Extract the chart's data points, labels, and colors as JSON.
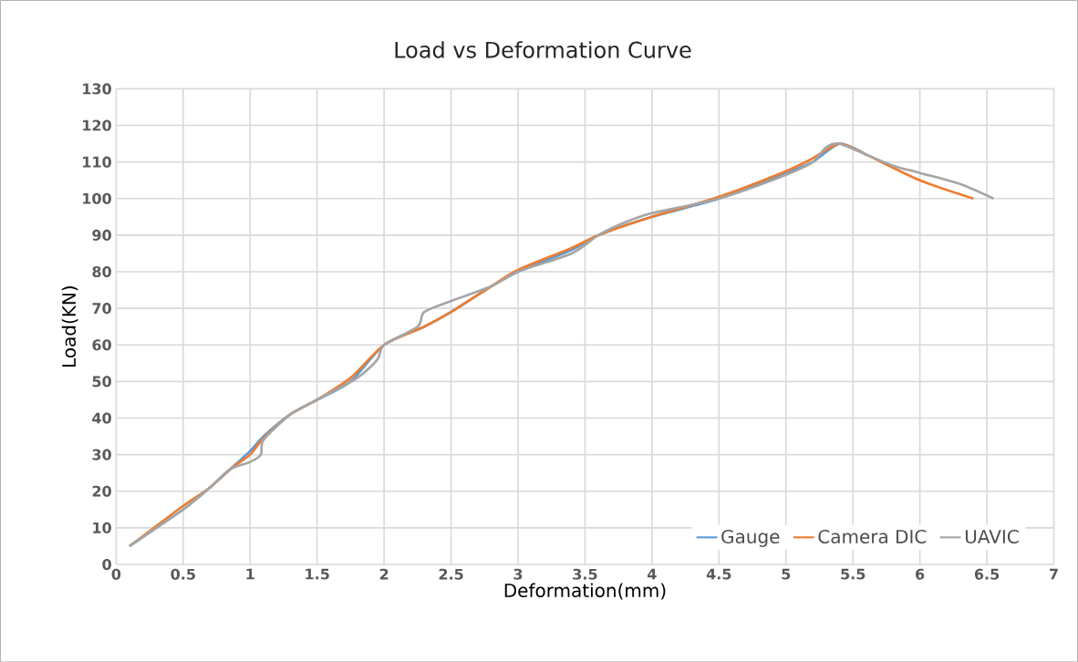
{
  "chart_data": {
    "type": "line",
    "title": "Load vs Deformation Curve",
    "xlabel": "Deformation(mm)",
    "ylabel": "Load(KN)",
    "xlim": [
      0,
      7
    ],
    "xticks": [
      0,
      0.5,
      1,
      1.5,
      2,
      2.5,
      3,
      3.5,
      4,
      4.5,
      5,
      5.5,
      6,
      6.5,
      7
    ],
    "ylim": [
      0,
      130
    ],
    "yticks": [
      0,
      10,
      20,
      30,
      40,
      50,
      60,
      70,
      80,
      90,
      100,
      110,
      120,
      130
    ],
    "grid": true,
    "legend": "bottom right",
    "marker": "none",
    "line_style": "solid",
    "series": [
      {
        "name": "Gauge",
        "color": "#5b9bd5",
        "x": [
          0.1,
          0.3,
          0.5,
          0.7,
          0.85,
          1,
          1.1,
          1.3,
          1.5,
          1.75,
          2,
          2.3,
          2.5,
          2.8,
          3,
          3.4,
          3.6,
          4,
          4.5,
          5,
          5.2,
          5.4,
          5.6
        ],
        "values": [
          5,
          10,
          15,
          21,
          26,
          31,
          35,
          41,
          45,
          50,
          60,
          65,
          69,
          76,
          80,
          86,
          90,
          95,
          100,
          107,
          110,
          115,
          112
        ]
      },
      {
        "name": "Camera DIC",
        "color": "#ed7d31",
        "x": [
          0.1,
          0.3,
          0.5,
          0.7,
          0.85,
          1,
          1.1,
          1.3,
          1.5,
          1.75,
          2,
          2.3,
          2.5,
          2.8,
          3,
          3.4,
          3.6,
          4,
          4.5,
          5,
          5.2,
          5.4,
          5.6,
          6,
          6.4
        ],
        "values": [
          5,
          10.5,
          16,
          21,
          26,
          30,
          34.5,
          41,
          45,
          51,
          60,
          65,
          69,
          76,
          80.5,
          86.5,
          90,
          95,
          100.5,
          107.5,
          111,
          115,
          112,
          105,
          100
        ]
      },
      {
        "name": "UAVIC",
        "color": "#a5a5a5",
        "x": [
          0.1,
          0.3,
          0.5,
          0.7,
          0.85,
          1,
          1.08,
          1.1,
          1.3,
          1.5,
          1.8,
          1.95,
          2,
          2.25,
          2.3,
          2.5,
          2.8,
          3,
          3.4,
          3.6,
          3.8,
          4,
          4.5,
          5,
          5.2,
          5.3,
          5.4,
          5.6,
          5.8,
          6,
          6.3,
          6.55
        ],
        "values": [
          5,
          10,
          15,
          21,
          26,
          28,
          30,
          34,
          41,
          45,
          51,
          56,
          60,
          65,
          69,
          72,
          76,
          80,
          85,
          90,
          93.5,
          96,
          100,
          106.5,
          110,
          114,
          115,
          112,
          109,
          107,
          104,
          100
        ]
      }
    ]
  }
}
